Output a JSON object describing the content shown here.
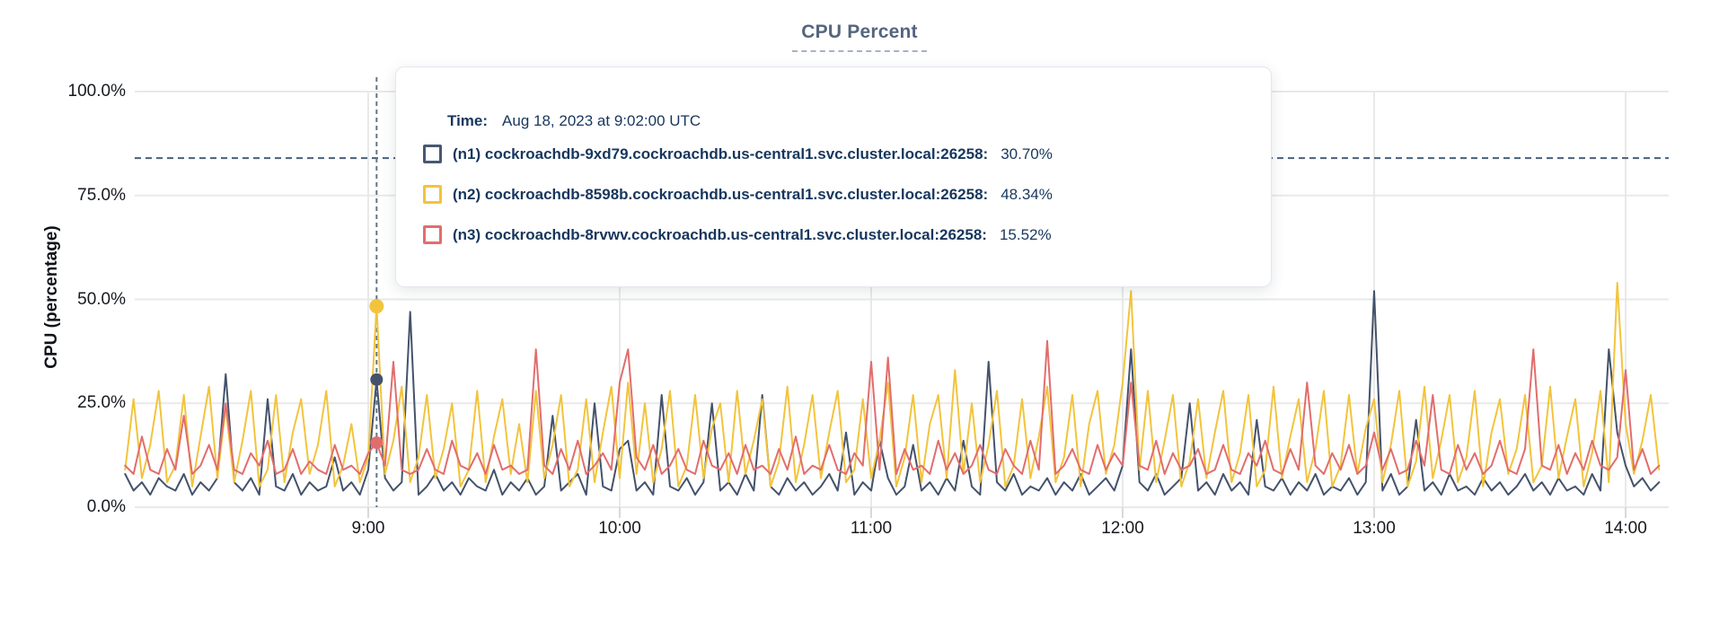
{
  "title": {
    "text": "CPU Percent"
  },
  "y_axis": {
    "label": "CPU (percentage)"
  },
  "tooltip": {
    "time_label": "Time:",
    "time_value": "Aug 18, 2023 at 9:02:00 UTC",
    "rows": [
      {
        "label": "(n1) cockroachdb-9xd79.cockroachdb.us-central1.svc.cluster.local:26258:",
        "value": "30.70%",
        "color": "#475872"
      },
      {
        "label": "(n2) cockroachdb-8598b.cockroachdb.us-central1.svc.cluster.local:26258:",
        "value": "48.34%",
        "color": "#F2C43D"
      },
      {
        "label": "(n3) cockroachdb-8rvwv.cockroachdb.us-central1.svc.cluster.local:26258:",
        "value": "15.52%",
        "color": "#E26D6D"
      }
    ]
  },
  "colors": {
    "n1_line": "#44526B",
    "n2_line": "#F2C43D",
    "n3_line": "#E26D6D",
    "grid": "#E9E9E9",
    "axis_tick": "#D9D9D9",
    "threshold_dash": "#47617B",
    "hover_dash": "#5F7689",
    "title_text": "#54667E",
    "tooltip_text": "#17365D"
  },
  "chart_data": {
    "type": "line",
    "title": "CPU Percent",
    "xlabel": "",
    "ylabel": "CPU (percentage)",
    "ylim": [
      0,
      100
    ],
    "grid": true,
    "legend_position": "tooltip-overlay",
    "y_ticks": [
      {
        "label": "100.0%",
        "value": 100
      },
      {
        "label": "75.0%",
        "value": 75
      },
      {
        "label": "50.0%",
        "value": 50
      },
      {
        "label": "25.0%",
        "value": 25
      },
      {
        "label": "0.0%",
        "value": 0
      }
    ],
    "x_ticks": [
      {
        "label": "9:00",
        "min": 60
      },
      {
        "label": "10:00",
        "min": 120
      },
      {
        "label": "11:00",
        "min": 180
      },
      {
        "label": "12:00",
        "min": 240
      },
      {
        "label": "13:00",
        "min": 300
      },
      {
        "label": "14:00",
        "min": 360
      }
    ],
    "x_start_min": 2,
    "x_step_min": 2,
    "x_range_min": [
      0,
      370
    ],
    "threshold_percent": 84,
    "hover": {
      "time_min": 62,
      "time_text": "Aug 18, 2023 at 9:02:00 UTC",
      "values": [
        30.7,
        48.34,
        15.52
      ]
    },
    "series": [
      {
        "name": "(n1) cockroachdb-9xd79.cockroachdb.us-central1.svc.cluster.local:26258",
        "color": "#44526B",
        "values": [
          8,
          4,
          6,
          3,
          7,
          5,
          4,
          8,
          3,
          6,
          4,
          7,
          32,
          6,
          4,
          7,
          3,
          26,
          5,
          4,
          8,
          3,
          6,
          4,
          5,
          12,
          4,
          6,
          3,
          9,
          30.7,
          7,
          4,
          6,
          47,
          3,
          5,
          8,
          4,
          6,
          3,
          7,
          5,
          4,
          9,
          3,
          6,
          4,
          7,
          3,
          5,
          22,
          4,
          6,
          8,
          3,
          25,
          5,
          4,
          14,
          16,
          4,
          6,
          3,
          27,
          5,
          4,
          7,
          3,
          6,
          25,
          4,
          6,
          3,
          8,
          4,
          27,
          5,
          3,
          7,
          4,
          6,
          3,
          5,
          8,
          4,
          18,
          3,
          6,
          4,
          16,
          7,
          3,
          5,
          15,
          4,
          6,
          3,
          7,
          4,
          16,
          5,
          3,
          35,
          6,
          4,
          8,
          3,
          5,
          4,
          7,
          3,
          6,
          4,
          8,
          3,
          5,
          7,
          4,
          10,
          38,
          6,
          4,
          8,
          3,
          5,
          7,
          25,
          4,
          6,
          3,
          8,
          4,
          6,
          3,
          21,
          5,
          4,
          7,
          3,
          6,
          4,
          8,
          3,
          5,
          4,
          7,
          3,
          6,
          52,
          4,
          8,
          3,
          5,
          21,
          4,
          6,
          3,
          8,
          4,
          5,
          3,
          7,
          4,
          6,
          3,
          5,
          8,
          4,
          6,
          3,
          7,
          4,
          5,
          3,
          8,
          4,
          38,
          18,
          10,
          5,
          7,
          4,
          6
        ]
      },
      {
        "name": "(n2) cockroachdb-8598b.cockroachdb.us-central1.svc.cluster.local:26258",
        "color": "#F2C43D",
        "values": [
          9,
          26,
          7,
          15,
          28,
          6,
          10,
          27,
          5,
          17,
          29,
          7,
          24,
          6,
          16,
          28,
          5,
          9,
          27,
          6,
          18,
          26,
          8,
          15,
          28,
          5,
          10,
          20,
          6,
          12,
          48.34,
          8,
          16,
          29,
          6,
          12,
          27,
          7,
          14,
          25,
          5,
          9,
          28,
          6,
          17,
          26,
          8,
          20,
          6,
          28,
          7,
          15,
          27,
          5,
          9,
          26,
          6,
          18,
          29,
          7,
          30,
          8,
          25,
          6,
          14,
          28,
          5,
          10,
          27,
          7,
          19,
          25,
          6,
          28,
          8,
          16,
          26,
          5,
          11,
          29,
          6,
          15,
          27,
          7,
          18,
          28,
          6,
          9,
          26,
          7,
          16,
          30,
          5,
          12,
          27,
          6,
          20,
          27,
          7,
          33,
          8,
          25,
          6,
          15,
          28,
          5,
          10,
          26,
          7,
          17,
          29,
          6,
          12,
          27,
          5,
          20,
          28,
          8,
          15,
          30,
          52,
          9,
          28,
          6,
          16,
          27,
          5,
          11,
          26,
          7,
          18,
          28,
          6,
          13,
          27,
          5,
          9,
          29,
          7,
          17,
          26,
          6,
          14,
          28,
          5,
          10,
          27,
          8,
          19,
          26,
          6,
          15,
          28,
          5,
          11,
          29,
          7,
          16,
          27,
          6,
          12,
          28,
          5,
          18,
          26,
          8,
          14,
          27,
          6,
          10,
          29,
          7,
          17,
          26,
          5,
          13,
          28,
          6,
          54,
          20,
          8,
          16,
          27,
          9
        ]
      },
      {
        "name": "(n3) cockroachdb-8rvwv.cockroachdb.us-central1.svc.cluster.local:26258",
        "color": "#E26D6D",
        "values": [
          10,
          8,
          17,
          9,
          8,
          14,
          9,
          22,
          8,
          10,
          15,
          9,
          25,
          9,
          8,
          13,
          10,
          16,
          8,
          9,
          14,
          8,
          11,
          9,
          8,
          15,
          9,
          10,
          8,
          13,
          15.52,
          10,
          35,
          9,
          8,
          9,
          14,
          9,
          8,
          16,
          10,
          9,
          13,
          8,
          15,
          9,
          10,
          8,
          9,
          38,
          10,
          8,
          14,
          9,
          16,
          8,
          10,
          13,
          9,
          30,
          38,
          12,
          9,
          15,
          8,
          10,
          14,
          9,
          8,
          16,
          10,
          9,
          13,
          8,
          15,
          9,
          10,
          8,
          14,
          9,
          17,
          8,
          10,
          9,
          15,
          9,
          8,
          13,
          10,
          35,
          9,
          36,
          8,
          14,
          9,
          10,
          8,
          16,
          9,
          13,
          8,
          10,
          15,
          9,
          8,
          14,
          10,
          8,
          16,
          9,
          40,
          8,
          10,
          14,
          9,
          8,
          15,
          9,
          13,
          10,
          30,
          10,
          9,
          16,
          8,
          13,
          9,
          10,
          14,
          8,
          9,
          15,
          9,
          8,
          13,
          10,
          16,
          9,
          8,
          14,
          9,
          30,
          10,
          8,
          13,
          9,
          15,
          8,
          10,
          18,
          9,
          14,
          8,
          9,
          16,
          10,
          27,
          9,
          8,
          15,
          9,
          13,
          8,
          10,
          16,
          9,
          8,
          14,
          38,
          10,
          9,
          15,
          8,
          13,
          9,
          16,
          10,
          9,
          12,
          33,
          9,
          14,
          8,
          10
        ]
      }
    ]
  }
}
